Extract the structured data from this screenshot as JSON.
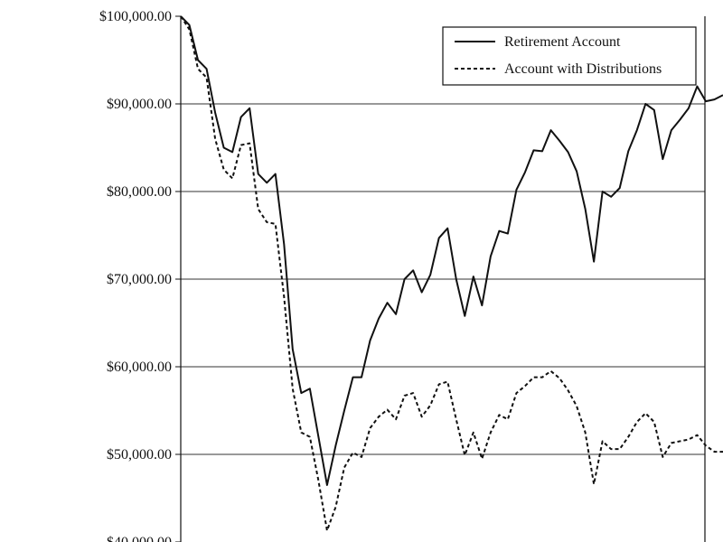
{
  "chart_data": {
    "type": "line",
    "title": "",
    "xlabel": "",
    "ylabel": "",
    "ylim": [
      40000,
      100000
    ],
    "yticks": [
      {
        "value": 100000,
        "label": "$100,000.00"
      },
      {
        "value": 90000,
        "label": "$90,000.00"
      },
      {
        "value": 80000,
        "label": "$80,000.00"
      },
      {
        "value": 70000,
        "label": "$70,000.00"
      },
      {
        "value": 60000,
        "label": "$60,000.00"
      },
      {
        "value": 50000,
        "label": "$50,000.00"
      },
      {
        "value": 40000,
        "label": "$40,000.00"
      }
    ],
    "grid": true,
    "legend_position": "top-right",
    "series": [
      {
        "name": "Retirement Account",
        "style": "solid",
        "values": [
          100000,
          99000,
          95000,
          94000,
          89000,
          85000,
          84500,
          88500,
          89500,
          82000,
          81000,
          82000,
          74000,
          62000,
          57000,
          57500,
          52000,
          46500,
          51000,
          55000,
          58800,
          58800,
          63000,
          65500,
          67300,
          66000,
          70000,
          71000,
          68500,
          70500,
          74700,
          75800,
          70000,
          65800,
          70300,
          67000,
          72600,
          75500,
          75200,
          80200,
          82200,
          84700,
          84600,
          87000,
          85800,
          84500,
          82300,
          78000,
          72000,
          80000,
          79400,
          80400,
          84600,
          87000,
          90000,
          89300,
          83700,
          87000,
          88200,
          89500,
          92000,
          90300,
          90500,
          91000
        ]
      },
      {
        "name": "Account with Distributions",
        "style": "dashed",
        "values": [
          100000,
          98500,
          94000,
          93000,
          86000,
          82500,
          81500,
          85300,
          85500,
          78000,
          76500,
          76300,
          68000,
          57500,
          52500,
          52000,
          47000,
          41300,
          44000,
          48500,
          50200,
          49700,
          53000,
          54300,
          55100,
          54000,
          56700,
          57000,
          54300,
          55600,
          58000,
          58300,
          54000,
          49900,
          52500,
          49500,
          52500,
          54500,
          54000,
          57000,
          57800,
          58800,
          58800,
          59500,
          58700,
          57300,
          55500,
          52500,
          46600,
          51500,
          50600,
          50600,
          52000,
          53700,
          54700,
          53700,
          49700,
          51300,
          51500,
          51700,
          52200,
          51000,
          50300,
          50300
        ]
      }
    ]
  }
}
